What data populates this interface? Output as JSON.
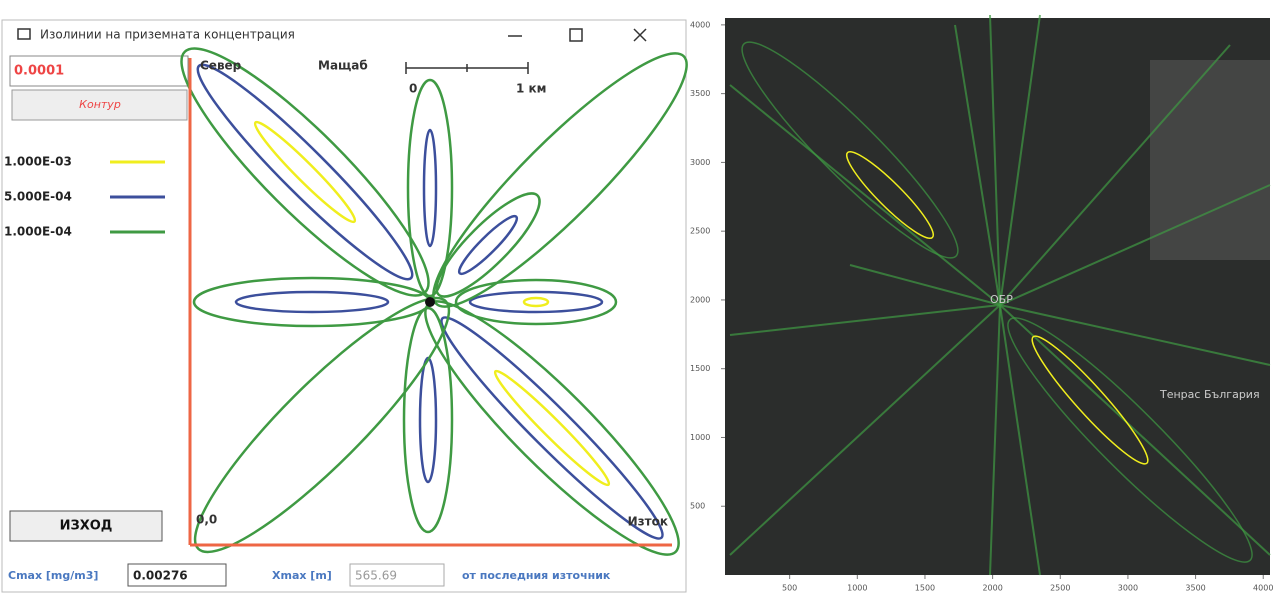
{
  "window": {
    "title": "Изолинии на приземната концентрация",
    "level_input": "0.0001",
    "contour_button": "Контур",
    "exit_button": "ИЗХОД",
    "legend": [
      {
        "label": "1.000E-03",
        "color": "#f0ee1e"
      },
      {
        "label": "5.000E-04",
        "color": "#3c4f9c"
      },
      {
        "label": "1.000E-04",
        "color": "#3f9a43"
      }
    ],
    "plot": {
      "north": "Север",
      "scale": "Мащаб",
      "scale_start": "0",
      "scale_end": "1 км",
      "origin": "0,0",
      "east": "Изток"
    },
    "status": {
      "cmax_label": "Cmax [mg/m3]",
      "cmax_value": "0.00276",
      "xmax_label": "Xmax [m]",
      "xmax_value": "565.69",
      "note": "от последния източник"
    }
  },
  "map": {
    "labels": [
      "ОБР",
      "Тенрас България"
    ],
    "xlim": [
      0,
      4050
    ],
    "ylim": [
      0,
      4050
    ],
    "xticks": [
      500,
      1000,
      1500,
      2000,
      2500,
      3000,
      3500,
      4000
    ],
    "yticks": [
      500,
      1000,
      1500,
      2000,
      2500,
      3000,
      3500,
      4000
    ]
  }
}
